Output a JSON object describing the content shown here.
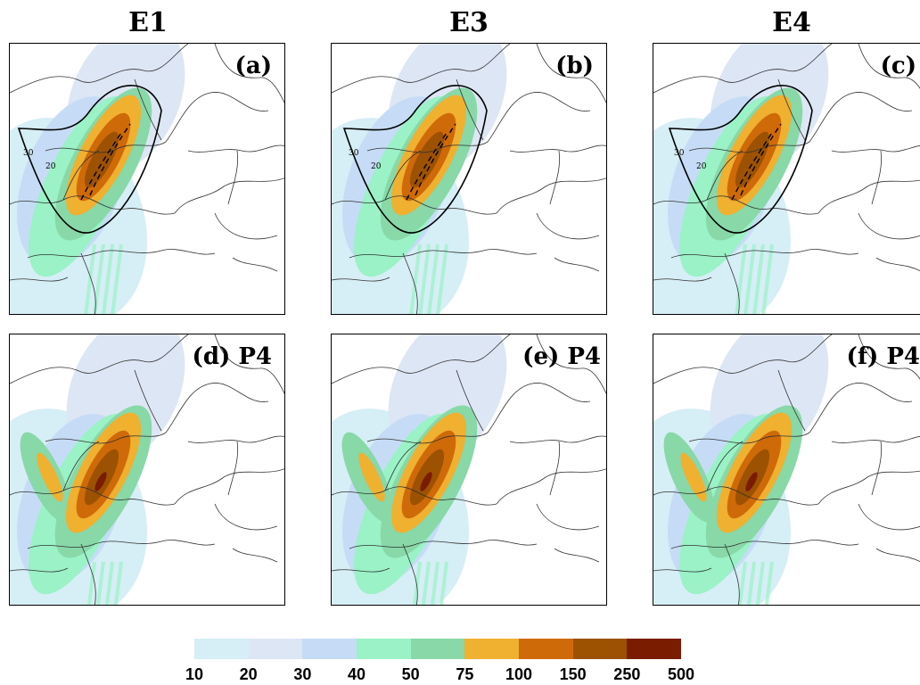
{
  "columns": [
    "E1",
    "E3",
    "E4"
  ],
  "panels": [
    {
      "label": "(a)"
    },
    {
      "label": "(b)"
    },
    {
      "label": "(c)"
    },
    {
      "label": "(d) P4"
    },
    {
      "label": "(e) P4"
    },
    {
      "label": "(f) P4"
    }
  ],
  "contour_labels": [
    "20",
    "30"
  ],
  "colorbar": {
    "levels": [
      "10",
      "20",
      "30",
      "40",
      "50",
      "75",
      "100",
      "150",
      "250",
      "500"
    ],
    "colors": [
      "#d6eef6",
      "#dde6f4",
      "#c6dcf6",
      "#9af2c6",
      "#88d8a8",
      "#f0b030",
      "#cf6a08",
      "#9c5200",
      "#7a1c00"
    ]
  }
}
